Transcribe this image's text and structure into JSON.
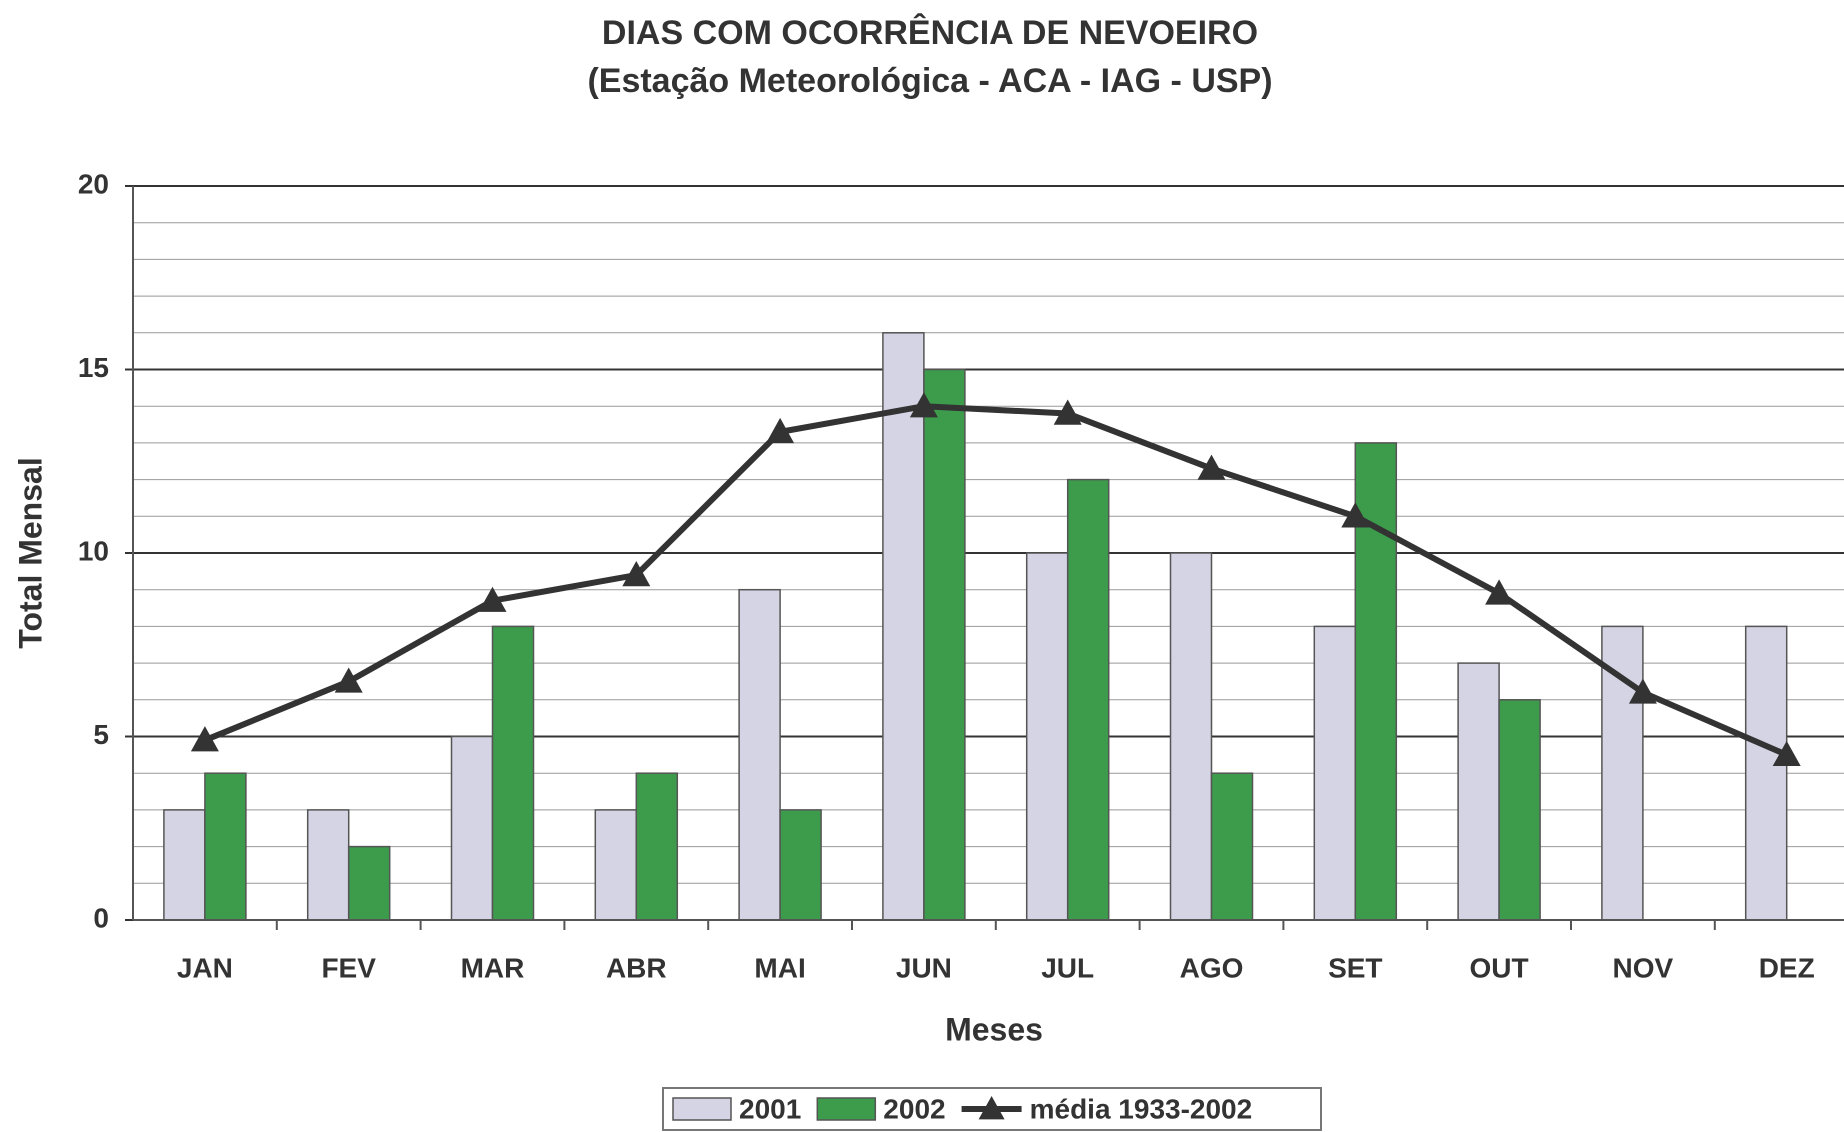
{
  "chart_data": {
    "type": "bar_line",
    "title": "DIAS COM OCORRÊNCIA DE NEVOEIRO",
    "subtitle": "(Estação Meteorológica - ACA - IAG - USP)",
    "x_label": "Meses",
    "y_label": "Total Mensal",
    "categories": [
      "JAN",
      "FEV",
      "MAR",
      "ABR",
      "MAI",
      "JUN",
      "JUL",
      "AGO",
      "SET",
      "OUT",
      "NOV",
      "DEZ"
    ],
    "series": [
      {
        "name": "2001",
        "type": "bar",
        "color": "#d4d4e4",
        "values": [
          3,
          3,
          5,
          3,
          9,
          16,
          10,
          10,
          8,
          7,
          8,
          8
        ]
      },
      {
        "name": "2002",
        "type": "bar",
        "color": "#3c9c4c",
        "values": [
          4,
          2,
          8,
          4,
          3,
          15,
          12,
          4,
          13,
          6,
          null,
          null
        ]
      },
      {
        "name": "média 1933-2002",
        "type": "line",
        "color": "#333333",
        "values": [
          4.9,
          6.5,
          8.7,
          9.4,
          13.3,
          14,
          13.8,
          12.3,
          11,
          8.9,
          6.2,
          4.5
        ]
      }
    ],
    "ylim": [
      0,
      20
    ],
    "yticks": [
      0,
      5,
      10,
      15,
      20
    ],
    "grid": true,
    "legend": "bottom"
  }
}
